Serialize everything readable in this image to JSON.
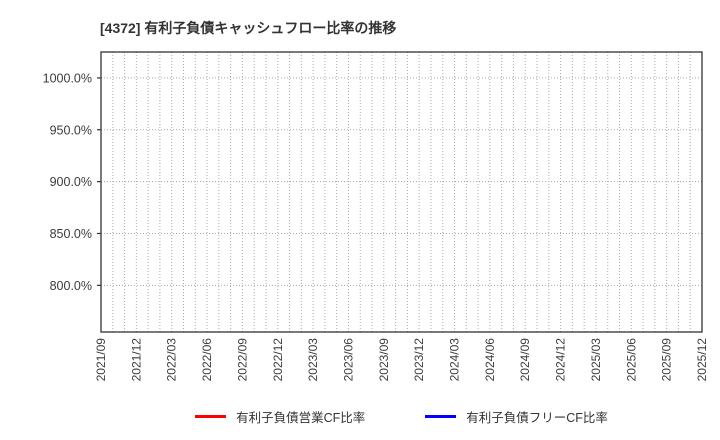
{
  "chart": {
    "title": "[4372]  有利子負債キャッシュフロー比率の推移"
  },
  "chart_data": {
    "type": "line",
    "title": "[4372]  有利子負債キャッシュフロー比率の推移",
    "x_tick_labels": [
      "2021/09",
      "2021/12",
      "2022/03",
      "2022/06",
      "2022/09",
      "2022/12",
      "2023/03",
      "2023/06",
      "2023/09",
      "2023/12",
      "2024/03",
      "2024/06",
      "2024/09",
      "2024/12",
      "2025/03",
      "2025/06",
      "2025/09",
      "2025/12"
    ],
    "x_minor_gridlines_per_quarter": 3,
    "y_tick_labels": [
      "1000.0%",
      "950.0%",
      "900.0%",
      "850.0%",
      "800.0%"
    ],
    "y_tick_values": [
      1000,
      950,
      900,
      850,
      800
    ],
    "ylim": [
      755,
      1025
    ],
    "grid_on": true,
    "grid_style": "dotted",
    "grid_color": "#aaaaaa",
    "axis_color": "#333333",
    "text_color": "#3c3c3c",
    "series": [
      {
        "name": "有利子負債営業CF比率",
        "color": "#ff0000",
        "values": []
      },
      {
        "name": "有利子負債フリーCF比率",
        "color": "#0000ff",
        "values": []
      }
    ],
    "legend_position": "bottom",
    "plotted_points_visible": false
  }
}
